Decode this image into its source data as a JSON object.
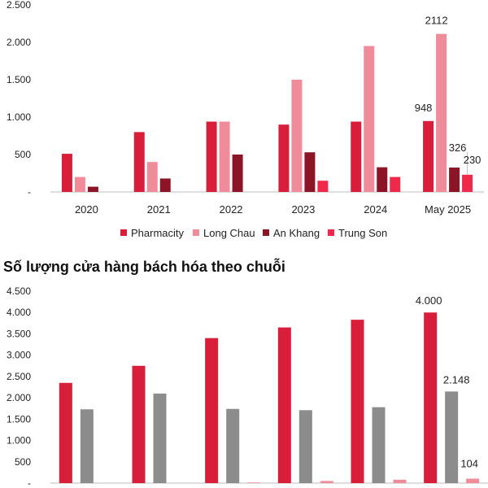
{
  "chart_data": [
    {
      "type": "bar",
      "title": "",
      "categories": [
        "2020",
        "2021",
        "2022",
        "2023",
        "2024",
        "May 2025"
      ],
      "ylim": [
        0,
        2500
      ],
      "yticks": [
        "-",
        "500",
        "1.000",
        "1.500",
        "2.000",
        "2.500"
      ],
      "grid": false,
      "legend": "bottom",
      "series": [
        {
          "name": "Pharmacity",
          "color": "#d81e3a",
          "values": [
            510,
            800,
            940,
            900,
            940,
            948
          ]
        },
        {
          "name": "Long Chau",
          "color": "#f08c9a",
          "values": [
            200,
            400,
            940,
            1500,
            1950,
            2112
          ]
        },
        {
          "name": "An Khang",
          "color": "#8b1527",
          "values": [
            70,
            180,
            500,
            530,
            330,
            326
          ]
        },
        {
          "name": "Trung Son",
          "color": "#f0284a",
          "values": [
            0,
            0,
            0,
            150,
            200,
            230
          ]
        }
      ],
      "data_labels": [
        {
          "series": 0,
          "category": 5,
          "text": "948"
        },
        {
          "series": 1,
          "category": 5,
          "text": "2112"
        },
        {
          "series": 2,
          "category": 5,
          "text": "326"
        },
        {
          "series": 3,
          "category": 5,
          "text": "230"
        }
      ]
    },
    {
      "type": "bar",
      "title": "Số lượng cửa hàng bách hóa theo chuỗi",
      "categories": [
        "",
        "",
        "",
        "",
        "",
        ""
      ],
      "ylim": [
        0,
        4500
      ],
      "yticks": [
        "-",
        "500",
        "1.000",
        "1.500",
        "2.000",
        "2.500",
        "3.000",
        "3.500",
        "4.000",
        "4.500"
      ],
      "grid": false,
      "series": [
        {
          "color": "#d81e3a",
          "values": [
            2350,
            2750,
            3400,
            3650,
            3830,
            4000
          ]
        },
        {
          "color": "#8c8c8c",
          "values": [
            1730,
            2100,
            1740,
            1710,
            1780,
            2148
          ]
        },
        {
          "color": "#f08c9a",
          "values": [
            0,
            0,
            15,
            50,
            80,
            104
          ]
        }
      ],
      "data_labels": [
        {
          "series": 0,
          "category": 5,
          "text": "4.000"
        },
        {
          "series": 1,
          "category": 5,
          "text": "2.148"
        },
        {
          "series": 2,
          "category": 5,
          "text": "104"
        }
      ]
    }
  ]
}
